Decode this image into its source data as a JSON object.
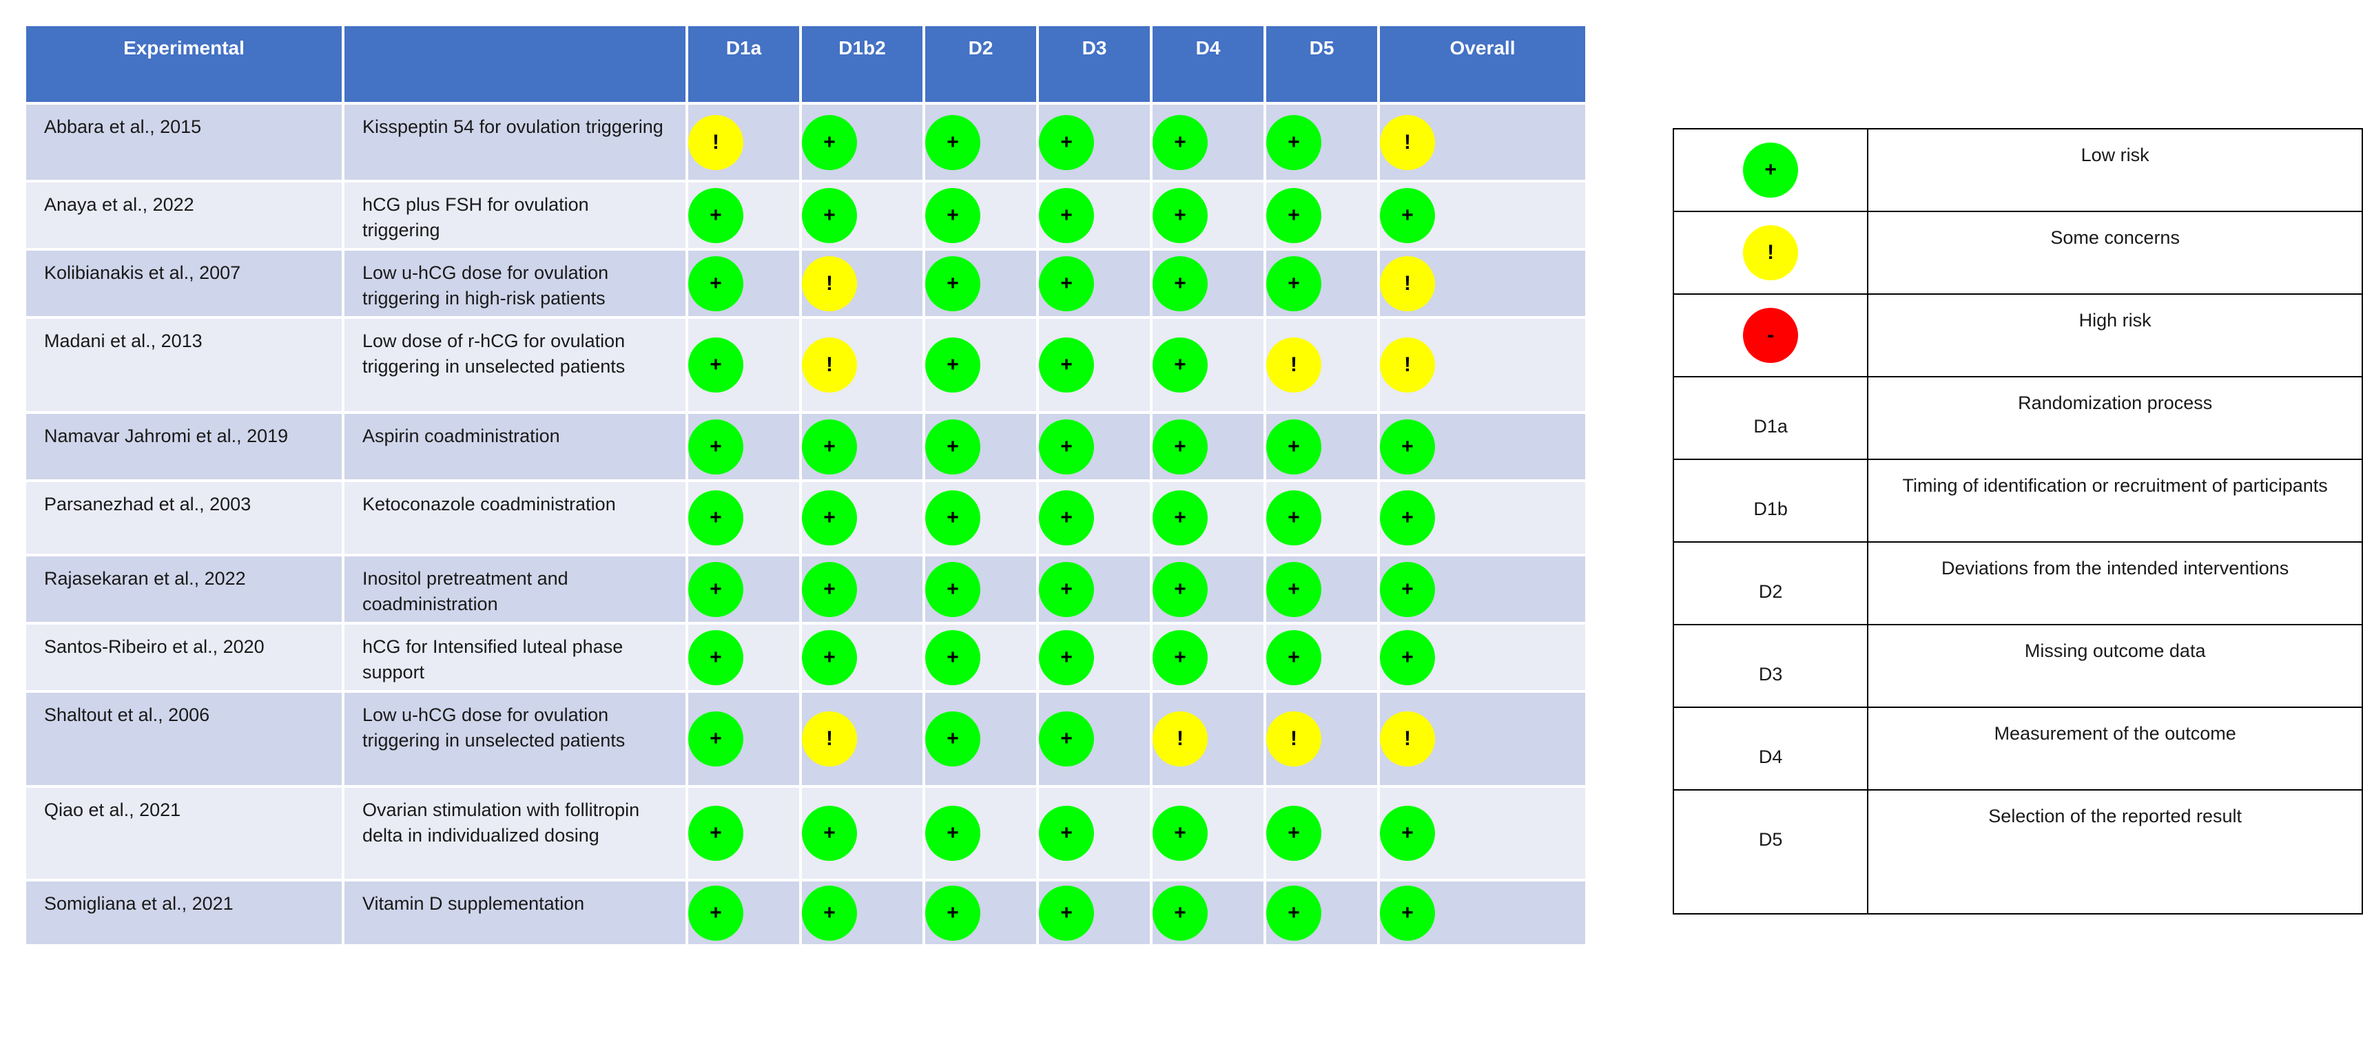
{
  "table": {
    "headers": [
      "Experimental",
      "",
      "D1a",
      "D1b2",
      "D2",
      "D3",
      "D4",
      "D5",
      "Overall"
    ],
    "rows": [
      {
        "study": "Abbara et al., 2015",
        "intervention": "Kisspeptin 54 for ovulation triggering",
        "ratings": [
          "!",
          "+",
          "+",
          "+",
          "+",
          "+",
          "!"
        ]
      },
      {
        "study": "Anaya et al., 2022",
        "intervention": "hCG plus FSH for ovulation triggering",
        "ratings": [
          "+",
          "+",
          "+",
          "+",
          "+",
          "+",
          "+"
        ]
      },
      {
        "study": "Kolibianakis et al., 2007",
        "intervention": "Low u-hCG dose for ovulation triggering in high-risk patients",
        "ratings": [
          "+",
          "!",
          "+",
          "+",
          "+",
          "+",
          "!"
        ]
      },
      {
        "study": "Madani et al., 2013",
        "intervention": "Low dose of r-hCG for ovulation triggering in unselected patients",
        "ratings": [
          "+",
          "!",
          "+",
          "+",
          "+",
          "!",
          "!"
        ]
      },
      {
        "study": "Namavar Jahromi et al., 2019",
        "intervention": "Aspirin coadministration",
        "ratings": [
          "+",
          "+",
          "+",
          "+",
          "+",
          "+",
          "+"
        ]
      },
      {
        "study": "Parsanezhad et al., 2003",
        "intervention": "Ketoconazole coadministration",
        "ratings": [
          "+",
          "+",
          "+",
          "+",
          "+",
          "+",
          "+"
        ]
      },
      {
        "study": "Rajasekaran et al., 2022",
        "intervention": "Inositol pretreatment and coadministration",
        "ratings": [
          "+",
          "+",
          "+",
          "+",
          "+",
          "+",
          "+"
        ]
      },
      {
        "study": "Santos-Ribeiro et al., 2020",
        "intervention": "hCG for Intensified luteal phase support",
        "ratings": [
          "+",
          "+",
          "+",
          "+",
          "+",
          "+",
          "+"
        ]
      },
      {
        "study": "Shaltout et al., 2006",
        "intervention": "Low u-hCG dose for ovulation triggering in unselected patients",
        "ratings": [
          "+",
          "!",
          "+",
          "+",
          "!",
          "!",
          "!"
        ]
      },
      {
        "study": "Qiao et al., 2021",
        "intervention": "Ovarian stimulation with follitropin delta in individualized dosing",
        "ratings": [
          "+",
          "+",
          "+",
          "+",
          "+",
          "+",
          "+"
        ]
      },
      {
        "study": "Somigliana et al., 2021",
        "intervention": "Vitamin D supplementation",
        "ratings": [
          "+",
          "+",
          "+",
          "+",
          "+",
          "+",
          "+"
        ]
      }
    ]
  },
  "legend": {
    "icons": [
      {
        "symbol": "+",
        "label": "Low risk",
        "color": "#00ff00"
      },
      {
        "symbol": "!",
        "label": "Some concerns",
        "color": "#ffff00"
      },
      {
        "symbol": "-",
        "label": "High risk",
        "color": "#ff0000"
      }
    ],
    "domains": [
      {
        "code": "D1a",
        "label": "Randomization process"
      },
      {
        "code": "D1b",
        "label": "Timing of identification or recruitment of participants"
      },
      {
        "code": "D2",
        "label": "Deviations from the intended interventions"
      },
      {
        "code": "D3",
        "label": "Missing outcome data"
      },
      {
        "code": "D4",
        "label": "Measurement of the outcome"
      },
      {
        "code": "D5",
        "label": "Selection of the reported result"
      }
    ]
  },
  "colors": {
    "header": "#4472c4",
    "row_odd": "#cfd5ea",
    "row_even": "#e9ebf5",
    "low": "#00ff00",
    "some": "#ffff00",
    "high": "#ff0000"
  }
}
